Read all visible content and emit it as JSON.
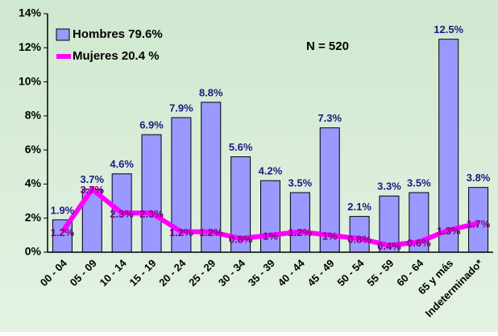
{
  "chart_data": {
    "type": "bar_line",
    "annotation": "N = 520",
    "categories": [
      "00 - 04",
      "05 - 09",
      "10 - 14",
      "15 - 19",
      "20 - 24",
      "25 - 29",
      "30 - 34",
      "35 - 39",
      "40 - 44",
      "45 - 49",
      "50 - 54",
      "55 - 59",
      "60 - 64",
      "65 y más",
      "Indeterminado*"
    ],
    "series": [
      {
        "name": "Hombres 79.6%",
        "type": "bar",
        "color": "#9999ff",
        "label_color": "#1a1a80",
        "values": [
          1.9,
          3.7,
          4.6,
          6.9,
          7.9,
          8.8,
          5.6,
          4.2,
          3.5,
          7.3,
          2.1,
          3.3,
          3.5,
          12.5,
          3.8
        ],
        "value_labels": [
          "1.9%",
          "3.7%",
          "4.6%",
          "6.9%",
          "7.9%",
          "8.8%",
          "5.6%",
          "4.2%",
          "3.5%",
          "7.3%",
          "2.1%",
          "3.3%",
          "3.5%",
          "12.5%",
          "3.8%"
        ]
      },
      {
        "name": "Mujeres 20.4 %",
        "type": "line",
        "color": "#ff00ff",
        "label_color": "#800080",
        "values": [
          1.2,
          3.7,
          2.3,
          2.3,
          1.2,
          1.2,
          0.8,
          1,
          1.2,
          1,
          0.8,
          0.4,
          0.6,
          1.3,
          1.7
        ],
        "value_labels": [
          "1.2%",
          "3.7%",
          "2.3%",
          "2.3%",
          "1.2%",
          "1.2%",
          "0.8%",
          "1%",
          "1.2%",
          "1%",
          "0.8%",
          "0.4%",
          "0.6%",
          "1.3%",
          "1.7%"
        ]
      }
    ],
    "ylim": [
      0,
      14
    ],
    "yticks": [
      {
        "value": 0,
        "label": "0%"
      },
      {
        "value": 2,
        "label": "2%"
      },
      {
        "value": 4,
        "label": "4%"
      },
      {
        "value": 6,
        "label": "6%"
      },
      {
        "value": 8,
        "label": "8%"
      },
      {
        "value": 10,
        "label": "10%"
      },
      {
        "value": 12,
        "label": "12%"
      },
      {
        "value": 14,
        "label": "14%"
      }
    ],
    "legend": "upper left"
  }
}
